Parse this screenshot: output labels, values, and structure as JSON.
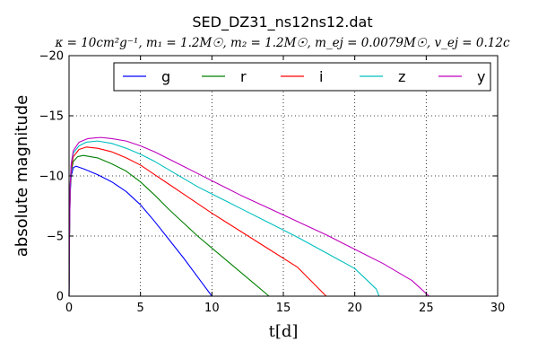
{
  "chart_data": {
    "type": "line",
    "title": "SED_DZ31_ns12ns12.dat",
    "subtitle": "κ = 10cm²g⁻¹, m₁ = 1.2M☉, m₂ = 1.2M☉, m_ej = 0.0079M☉, v_ej = 0.12c",
    "xlabel": "t[d]",
    "ylabel": "absolute magnitude",
    "xlim": [
      0,
      30
    ],
    "ylim": [
      0,
      -20
    ],
    "y_inverted": true,
    "grid": true,
    "legend_position": "top-right",
    "x_ticks": [
      "0",
      "5",
      "10",
      "15",
      "20",
      "25",
      "30"
    ],
    "y_ticks": [
      "−20",
      "−15",
      "−10",
      "−5",
      "0"
    ],
    "x_tick_values": [
      0,
      5,
      10,
      15,
      20,
      25,
      30
    ],
    "y_tick_values": [
      -20,
      -15,
      -10,
      -5,
      0
    ],
    "series": [
      {
        "name": "g",
        "color": "#0000ff",
        "points": [
          [
            0,
            0
          ],
          [
            0.03,
            -5
          ],
          [
            0.08,
            -8.5
          ],
          [
            0.15,
            -10
          ],
          [
            0.3,
            -10.7
          ],
          [
            0.5,
            -10.8
          ],
          [
            1,
            -10.6
          ],
          [
            2,
            -10.1
          ],
          [
            3,
            -9.5
          ],
          [
            4,
            -8.7
          ],
          [
            5,
            -7.6
          ],
          [
            6,
            -6.2
          ],
          [
            7,
            -4.7
          ],
          [
            8,
            -3.2
          ],
          [
            9,
            -1.6
          ],
          [
            10,
            0
          ]
        ]
      },
      {
        "name": "r",
        "color": "#008000",
        "points": [
          [
            0,
            0
          ],
          [
            0.03,
            -5
          ],
          [
            0.08,
            -8.8
          ],
          [
            0.15,
            -10.4
          ],
          [
            0.3,
            -11.2
          ],
          [
            0.6,
            -11.6
          ],
          [
            1,
            -11.7
          ],
          [
            2,
            -11.5
          ],
          [
            3,
            -11
          ],
          [
            4,
            -10.4
          ],
          [
            5,
            -9.5
          ],
          [
            6,
            -8.4
          ],
          [
            7,
            -7.2
          ],
          [
            8,
            -6.1
          ],
          [
            9,
            -5
          ],
          [
            10,
            -4
          ],
          [
            11,
            -3
          ],
          [
            12,
            -2
          ],
          [
            13,
            -1
          ],
          [
            14,
            0
          ]
        ]
      },
      {
        "name": "i",
        "color": "#ff0000",
        "points": [
          [
            0,
            0
          ],
          [
            0.03,
            -5
          ],
          [
            0.08,
            -9
          ],
          [
            0.15,
            -10.6
          ],
          [
            0.3,
            -11.6
          ],
          [
            0.7,
            -12.2
          ],
          [
            1.2,
            -12.4
          ],
          [
            2,
            -12.3
          ],
          [
            3,
            -12
          ],
          [
            4,
            -11.5
          ],
          [
            5,
            -10.9
          ],
          [
            6,
            -10.1
          ],
          [
            7,
            -9.3
          ],
          [
            8,
            -8.5
          ],
          [
            9,
            -7.7
          ],
          [
            10,
            -6.9
          ],
          [
            12,
            -5.4
          ],
          [
            14,
            -3.9
          ],
          [
            16,
            -2.4
          ],
          [
            18,
            0
          ]
        ]
      },
      {
        "name": "z",
        "color": "#00bfbf",
        "points": [
          [
            0,
            0
          ],
          [
            0.03,
            -5
          ],
          [
            0.08,
            -9.2
          ],
          [
            0.15,
            -10.9
          ],
          [
            0.3,
            -11.9
          ],
          [
            0.7,
            -12.5
          ],
          [
            1.2,
            -12.8
          ],
          [
            2,
            -12.9
          ],
          [
            3,
            -12.7
          ],
          [
            4,
            -12.3
          ],
          [
            5,
            -11.8
          ],
          [
            6,
            -11.2
          ],
          [
            7,
            -10.5
          ],
          [
            8,
            -9.8
          ],
          [
            9,
            -9.1
          ],
          [
            10,
            -8.5
          ],
          [
            12,
            -7.3
          ],
          [
            14,
            -6.1
          ],
          [
            16,
            -4.9
          ],
          [
            18,
            -3.6
          ],
          [
            20,
            -2.3
          ],
          [
            21.5,
            -0.6
          ],
          [
            21.7,
            0
          ]
        ]
      },
      {
        "name": "y",
        "color": "#bf00bf",
        "points": [
          [
            0,
            0
          ],
          [
            0.03,
            -5
          ],
          [
            0.08,
            -9.3
          ],
          [
            0.15,
            -11
          ],
          [
            0.3,
            -12.1
          ],
          [
            0.7,
            -12.8
          ],
          [
            1.3,
            -13.1
          ],
          [
            2.2,
            -13.2
          ],
          [
            3,
            -13.1
          ],
          [
            4,
            -12.9
          ],
          [
            5,
            -12.5
          ],
          [
            6,
            -12
          ],
          [
            7,
            -11.4
          ],
          [
            8,
            -10.8
          ],
          [
            9,
            -10.2
          ],
          [
            10,
            -9.6
          ],
          [
            12,
            -8.4
          ],
          [
            14,
            -7.3
          ],
          [
            16,
            -6.2
          ],
          [
            18,
            -5.1
          ],
          [
            20,
            -3.9
          ],
          [
            22,
            -2.7
          ],
          [
            24,
            -1.3
          ],
          [
            25.2,
            0
          ]
        ]
      }
    ]
  }
}
